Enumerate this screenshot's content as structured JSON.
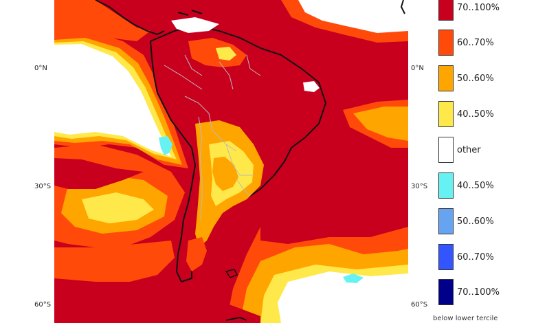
{
  "map": {
    "lat_labels": [
      "0°N",
      "30°S",
      "60°S"
    ],
    "colors": {
      "ocean_dominant": "#c8001e",
      "orange_dark": "#ff4a0a",
      "orange": "#ffa500",
      "yellow": "#ffe84a",
      "white": "#ffffff",
      "coast": "#111111",
      "border": "#bbbbbb"
    }
  },
  "legend": {
    "items": [
      {
        "label": "70..100%",
        "color": "#c8001e"
      },
      {
        "label": "60..70%",
        "color": "#ff4a0a"
      },
      {
        "label": "50..60%",
        "color": "#ffa500"
      },
      {
        "label": "40..50%",
        "color": "#ffe84a"
      },
      {
        "label": "other",
        "color": "#ffffff"
      },
      {
        "label": "40..50%",
        "color": "#66f2f2"
      },
      {
        "label": "50..60%",
        "color": "#66a4f2"
      },
      {
        "label": "60..70%",
        "color": "#3355ff"
      },
      {
        "label": "70..100%",
        "color": "#00008b"
      }
    ],
    "note": "below lower tercile"
  }
}
